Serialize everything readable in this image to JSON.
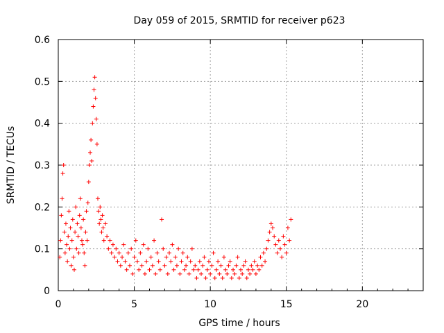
{
  "chart_data": {
    "type": "scatter",
    "title": "Day 059 of 2015, SRMTID for receiver p623",
    "xlabel": "GPS time / hours",
    "ylabel": "SRMTID / TECUs",
    "xlim": [
      0,
      24
    ],
    "ylim": [
      0,
      0.6
    ],
    "xticks": [
      0,
      5,
      10,
      15,
      20
    ],
    "yticks": [
      0,
      0.1,
      0.2,
      0.3,
      0.4,
      0.5,
      0.6
    ],
    "xtick_labels": [
      "0",
      "5",
      "10",
      "15",
      "20"
    ],
    "ytick_labels": [
      "0",
      "0.1",
      "0.2",
      "0.3",
      "0.4",
      "0.5",
      "0.6"
    ],
    "grid": true,
    "marker": "+",
    "color": "#ff0000",
    "series": [
      {
        "name": "p623",
        "x": [
          0.0,
          0.05,
          0.1,
          0.15,
          0.2,
          0.25,
          0.3,
          0.35,
          0.4,
          0.45,
          0.5,
          0.55,
          0.6,
          0.65,
          0.7,
          0.75,
          0.8,
          0.85,
          0.9,
          0.95,
          1.0,
          1.05,
          1.1,
          1.15,
          1.2,
          1.25,
          1.3,
          1.35,
          1.4,
          1.45,
          1.5,
          1.55,
          1.6,
          1.65,
          1.7,
          1.75,
          1.8,
          1.85,
          1.9,
          1.95,
          2.0,
          2.05,
          2.1,
          2.15,
          2.2,
          2.25,
          2.3,
          2.35,
          2.4,
          2.45,
          2.5,
          2.55,
          2.6,
          2.65,
          2.7,
          2.75,
          2.8,
          2.85,
          2.9,
          2.95,
          3.0,
          3.1,
          3.2,
          3.3,
          3.4,
          3.5,
          3.6,
          3.7,
          3.8,
          3.9,
          4.0,
          4.1,
          4.2,
          4.3,
          4.4,
          4.5,
          4.6,
          4.7,
          4.8,
          4.9,
          5.0,
          5.1,
          5.2,
          5.3,
          5.4,
          5.5,
          5.6,
          5.7,
          5.8,
          5.9,
          6.0,
          6.1,
          6.2,
          6.3,
          6.4,
          6.5,
          6.6,
          6.7,
          6.8,
          6.9,
          7.0,
          7.1,
          7.2,
          7.3,
          7.4,
          7.5,
          7.6,
          7.7,
          7.8,
          7.9,
          8.0,
          8.1,
          8.2,
          8.3,
          8.4,
          8.5,
          8.6,
          8.7,
          8.8,
          8.9,
          9.0,
          9.1,
          9.2,
          9.3,
          9.4,
          9.5,
          9.6,
          9.7,
          9.8,
          9.9,
          10.0,
          10.1,
          10.2,
          10.3,
          10.4,
          10.5,
          10.6,
          10.7,
          10.8,
          10.9,
          11.0,
          11.1,
          11.2,
          11.3,
          11.4,
          11.5,
          11.6,
          11.7,
          11.8,
          11.9,
          12.0,
          12.1,
          12.2,
          12.3,
          12.4,
          12.5,
          12.6,
          12.7,
          12.8,
          12.9,
          13.0,
          13.1,
          13.2,
          13.3,
          13.4,
          13.5,
          13.6,
          13.7,
          13.8,
          13.9,
          14.0,
          14.1,
          14.2,
          14.3,
          14.4,
          14.5,
          14.6,
          14.7,
          14.8,
          14.9,
          15.0,
          15.1,
          15.2,
          15.3,
          15.4,
          15.5,
          0.08,
          0.12,
          0.18,
          0.22,
          0.28,
          0.3,
          0.14,
          0.09,
          0.16,
          0.11,
          0.07,
          0.13,
          0.19,
          0.1,
          0.15,
          0.06,
          0.12,
          0.17,
          0.08,
          0.05,
          0.14,
          0.2,
          0.1,
          0.16,
          0.13,
          0.09,
          0.18,
          0.22,
          0.15,
          0.12,
          0.11,
          0.17,
          0.09,
          0.06,
          0.14,
          0.19,
          0.12,
          0.21,
          0.26,
          0.3,
          0.33,
          0.36,
          0.31,
          0.4,
          0.44,
          0.48,
          0.51,
          0.46,
          0.41,
          0.35,
          0.22,
          0.19,
          0.16,
          0.2,
          0.17,
          0.14,
          0.18,
          0.15,
          0.12,
          0.16,
          0.13,
          0.1,
          0.12,
          0.09,
          0.11,
          0.08,
          0.1,
          0.07,
          0.09,
          0.06,
          0.08,
          0.11,
          0.07,
          0.05,
          0.09,
          0.06,
          0.1,
          0.04,
          0.08,
          0.12,
          0.07,
          0.05,
          0.09,
          0.06,
          0.11,
          0.04,
          0.07,
          0.1,
          0.05,
          0.08,
          0.06,
          0.12,
          0.04,
          0.09,
          0.07,
          0.05,
          0.17,
          0.1,
          0.06,
          0.08,
          0.04,
          0.09,
          0.07,
          0.11,
          0.05,
          0.08,
          0.06,
          0.1,
          0.04,
          0.07,
          0.09,
          0.05,
          0.06,
          0.08,
          0.04,
          0.07,
          0.1,
          0.05,
          0.06,
          0.03,
          0.05,
          0.07,
          0.04,
          0.06,
          0.08,
          0.03,
          0.05,
          0.07,
          0.04,
          0.06,
          0.09,
          0.03,
          0.05,
          0.07,
          0.04,
          0.06,
          0.03,
          0.08,
          0.05,
          0.04,
          0.06,
          0.07,
          0.03,
          0.05,
          0.04,
          0.06,
          0.08,
          0.03,
          0.05,
          0.04,
          0.06,
          0.07,
          0.03,
          0.05,
          0.04,
          0.06,
          0.05,
          0.07,
          0.04,
          0.06,
          0.05,
          0.08,
          0.06,
          0.09,
          0.07,
          0.1,
          0.12,
          0.14,
          0.16,
          0.15,
          0.13,
          0.11,
          0.09,
          0.12,
          0.1,
          0.08,
          0.13,
          0.11,
          0.09,
          0.15,
          0.12,
          0.17
        ]
      }
    ]
  }
}
